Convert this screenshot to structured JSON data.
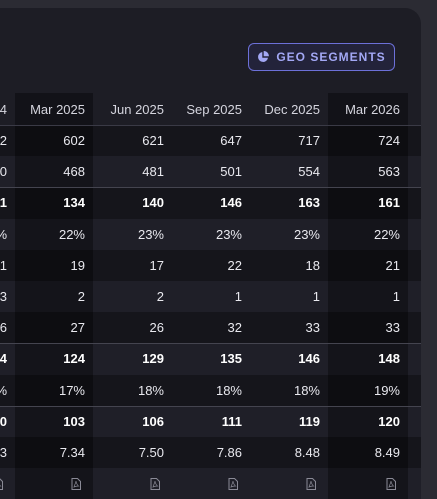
{
  "header": {
    "button": "GEO SEGMENTS"
  },
  "table": {
    "columns": [
      "4",
      "Mar 2025",
      "Jun 2025",
      "Sep 2025",
      "Dec 2025",
      "Mar 2026"
    ],
    "rows": [
      [
        "2",
        "602",
        "621",
        "647",
        "717",
        "724"
      ],
      [
        "0",
        "468",
        "481",
        "501",
        "554",
        "563"
      ],
      [
        "1",
        "134",
        "140",
        "146",
        "163",
        "161"
      ],
      [
        "%",
        "22%",
        "23%",
        "23%",
        "23%",
        "22%"
      ],
      [
        "1",
        "19",
        "17",
        "22",
        "18",
        "21"
      ],
      [
        "3",
        "2",
        "2",
        "1",
        "1",
        "1"
      ],
      [
        "6",
        "27",
        "26",
        "32",
        "33",
        "33"
      ],
      [
        "4",
        "124",
        "129",
        "135",
        "146",
        "148"
      ],
      [
        "%",
        "17%",
        "18%",
        "18%",
        "18%",
        "19%"
      ],
      [
        "0",
        "103",
        "106",
        "111",
        "119",
        "120"
      ],
      [
        "3",
        "7.34",
        "7.50",
        "7.86",
        "8.48",
        "8.49"
      ]
    ]
  }
}
